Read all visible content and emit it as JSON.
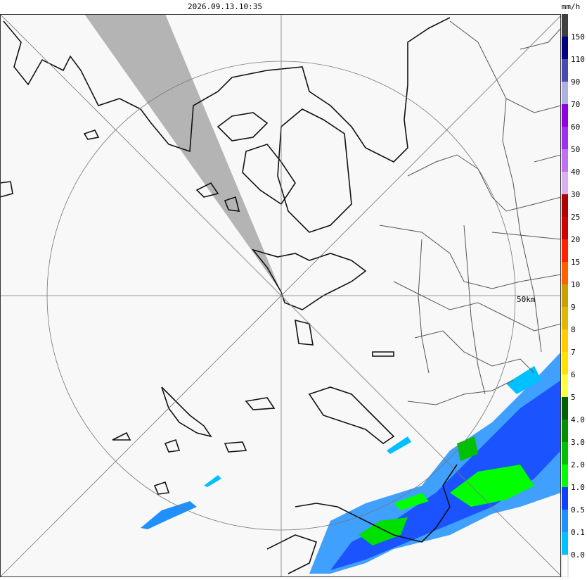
{
  "header": {
    "timestamp": "2026.09.13.10:35",
    "unit": "mm/h"
  },
  "map": {
    "range_label": "50km"
  },
  "legend": {
    "items": [
      {
        "label": "150",
        "color": "#404040"
      },
      {
        "label": "110",
        "color": "#000080"
      },
      {
        "label": "90",
        "color": "#4a4ab0"
      },
      {
        "label": "70",
        "color": "#b0b0e0"
      },
      {
        "label": "60",
        "color": "#9000e0"
      },
      {
        "label": "50",
        "color": "#a030f0"
      },
      {
        "label": "40",
        "color": "#c070f0"
      },
      {
        "label": "30",
        "color": "#d8b0f0"
      },
      {
        "label": "25",
        "color": "#b00000"
      },
      {
        "label": "20",
        "color": "#d00000"
      },
      {
        "label": "15",
        "color": "#ff2000"
      },
      {
        "label": "10",
        "color": "#ff6000"
      },
      {
        "label": "9",
        "color": "#c8a000"
      },
      {
        "label": "8",
        "color": "#e0b800"
      },
      {
        "label": "7",
        "color": "#ffcc00"
      },
      {
        "label": "6",
        "color": "#ffe000"
      },
      {
        "label": "5",
        "color": "#ffff40"
      },
      {
        "label": "4.0",
        "color": "#006000"
      },
      {
        "label": "3.0",
        "color": "#009000"
      },
      {
        "label": "2.0",
        "color": "#00c000"
      },
      {
        "label": "1.0",
        "color": "#00ff00"
      },
      {
        "label": "0.5",
        "color": "#1040ff"
      },
      {
        "label": "0.1",
        "color": "#2090ff"
      },
      {
        "label": "0.0",
        "color": "#00c0ff"
      }
    ],
    "bottom_color": "#ffffff"
  }
}
